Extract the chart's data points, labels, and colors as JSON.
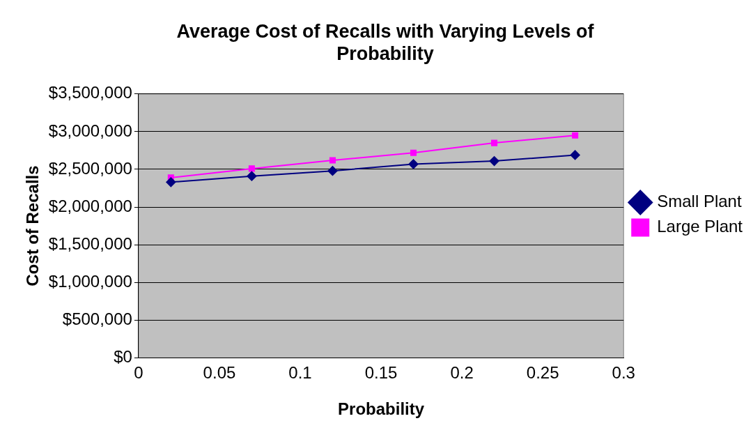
{
  "chart_data": {
    "type": "line",
    "title": "Average Cost of Recalls with Varying Levels of Probability",
    "xlabel": "Probability",
    "ylabel": "Cost of Recalls",
    "x": [
      0.02,
      0.07,
      0.12,
      0.17,
      0.22,
      0.27
    ],
    "series": [
      {
        "name": "Small Plant",
        "color": "#000080",
        "marker": "diamond",
        "values": [
          2330000,
          2410000,
          2480000,
          2570000,
          2610000,
          2690000
        ]
      },
      {
        "name": "Large Plant",
        "color": "#ff00ff",
        "marker": "square",
        "values": [
          2390000,
          2510000,
          2620000,
          2720000,
          2850000,
          2950000
        ]
      }
    ],
    "xlim": [
      0,
      0.3
    ],
    "xticks": [
      0,
      0.05,
      0.1,
      0.15,
      0.2,
      0.25,
      0.3
    ],
    "ylim": [
      0,
      3500000
    ],
    "yticks": [
      {
        "value": 0,
        "label": "$0"
      },
      {
        "value": 500000,
        "label": "$500,000"
      },
      {
        "value": 1000000,
        "label": "$1,000,000"
      },
      {
        "value": 1500000,
        "label": "$1,500,000"
      },
      {
        "value": 2000000,
        "label": "$2,000,000"
      },
      {
        "value": 2500000,
        "label": "$2,500,000"
      },
      {
        "value": 3000000,
        "label": "$3,000,000"
      },
      {
        "value": 3500000,
        "label": "$3,500,000"
      }
    ],
    "grid": "y",
    "legend": "right",
    "line_style": "solid"
  }
}
